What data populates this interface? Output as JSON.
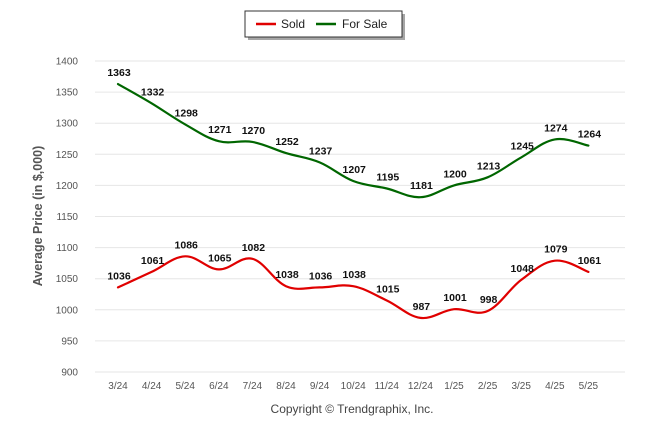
{
  "legend": {
    "items": [
      {
        "label": "Sold",
        "color": "#e00000"
      },
      {
        "label": "For Sale",
        "color": "#006600"
      }
    ]
  },
  "footer": {
    "copyright": "Copyright © Trendgraphix, Inc."
  },
  "chart_data": {
    "type": "line",
    "title": "",
    "xlabel": "",
    "ylabel": "Average Price (in $,000)",
    "ylim": [
      900,
      1400
    ],
    "yticks": [
      900,
      950,
      1000,
      1050,
      1100,
      1150,
      1200,
      1250,
      1300,
      1350,
      1400
    ],
    "categories": [
      "3/24",
      "4/24",
      "5/24",
      "6/24",
      "7/24",
      "8/24",
      "9/24",
      "10/24",
      "11/24",
      "12/24",
      "1/25",
      "2/25",
      "3/25",
      "4/25",
      "5/25"
    ],
    "grid": true,
    "legend_position": "top-center",
    "series": [
      {
        "name": "Sold",
        "color": "#e00000",
        "values": [
          1036,
          1061,
          1086,
          1065,
          1082,
          1038,
          1036,
          1038,
          1015,
          987,
          1001,
          998,
          1048,
          1079,
          1061
        ]
      },
      {
        "name": "For Sale",
        "color": "#006600",
        "values": [
          1363,
          1332,
          1298,
          1271,
          1270,
          1252,
          1237,
          1207,
          1195,
          1181,
          1200,
          1213,
          1245,
          1274,
          1264
        ]
      }
    ]
  }
}
